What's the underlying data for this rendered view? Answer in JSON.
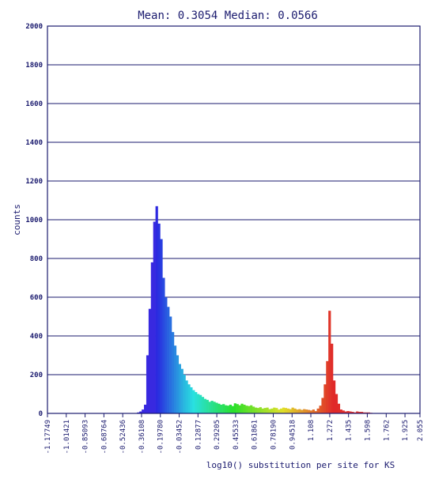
{
  "chart_data": {
    "type": "bar",
    "title": "Mean: 0.3054 Median: 0.0566",
    "xlabel": "log10() substitution per site for KS",
    "ylabel": "counts",
    "ylim": [
      0,
      2000
    ],
    "xlim": [
      -1.17749,
      2.055
    ],
    "yticks": [
      0,
      200,
      400,
      600,
      800,
      1000,
      1200,
      1400,
      1600,
      1800,
      2000
    ],
    "xticks": [
      "-1.17749",
      "-1.01421",
      "-0.85093",
      "-0.68764",
      "-0.52436",
      "-0.36108",
      "-0.19780",
      "-0.03452",
      "0.12877",
      "0.29205",
      "0.45533",
      "0.61861",
      "0.78190",
      "0.94518",
      "1.108",
      "1.272",
      "1.435",
      "1.598",
      "1.762",
      "1.925",
      "2.055"
    ],
    "grid": true,
    "bins_x": [
      -0.41,
      -0.39,
      -0.37,
      -0.35,
      -0.33,
      -0.31,
      -0.29,
      -0.27,
      -0.25,
      -0.23,
      -0.21,
      -0.19,
      -0.17,
      -0.15,
      -0.13,
      -0.11,
      -0.09,
      -0.07,
      -0.05,
      -0.03,
      -0.01,
      0.01,
      0.03,
      0.05,
      0.07,
      0.09,
      0.11,
      0.13,
      0.15,
      0.17,
      0.19,
      0.21,
      0.23,
      0.25,
      0.27,
      0.29,
      0.31,
      0.33,
      0.35,
      0.37,
      0.39,
      0.41,
      0.43,
      0.45,
      0.47,
      0.49,
      0.51,
      0.53,
      0.55,
      0.57,
      0.59,
      0.61,
      0.63,
      0.65,
      0.67,
      0.69,
      0.71,
      0.73,
      0.75,
      0.77,
      0.79,
      0.81,
      0.83,
      0.85,
      0.87,
      0.89,
      0.91,
      0.93,
      0.95,
      0.97,
      0.99,
      1.01,
      1.03,
      1.05,
      1.07,
      1.09,
      1.11,
      1.13,
      1.15,
      1.17,
      1.19,
      1.21,
      1.23,
      1.25,
      1.27,
      1.29,
      1.31,
      1.33,
      1.35,
      1.37,
      1.39,
      1.41,
      1.43,
      1.45,
      1.47,
      1.49,
      1.51,
      1.53,
      1.55,
      1.57,
      1.59,
      1.61,
      1.63,
      1.65,
      1.67,
      1.69,
      1.71,
      1.73,
      1.75,
      1.77,
      1.79,
      1.81,
      1.83,
      1.85,
      1.87,
      1.89,
      1.91,
      1.93,
      1.95,
      1.97,
      1.99,
      2.01,
      2.03,
      2.05
    ],
    "bins_count": [
      2,
      5,
      10,
      20,
      45,
      300,
      540,
      780,
      990,
      1070,
      980,
      900,
      700,
      600,
      550,
      500,
      420,
      350,
      300,
      255,
      230,
      200,
      170,
      150,
      135,
      120,
      110,
      100,
      95,
      85,
      75,
      70,
      60,
      65,
      60,
      55,
      50,
      45,
      48,
      42,
      40,
      45,
      38,
      52,
      48,
      42,
      50,
      45,
      40,
      38,
      42,
      35,
      30,
      28,
      32,
      25,
      28,
      30,
      22,
      25,
      30,
      28,
      20,
      25,
      30,
      28,
      25,
      22,
      30,
      25,
      20,
      22,
      18,
      22,
      20,
      18,
      15,
      20,
      12,
      25,
      40,
      80,
      150,
      270,
      530,
      360,
      170,
      100,
      50,
      20,
      15,
      10,
      12,
      10,
      8,
      5,
      10,
      8,
      8,
      5,
      5,
      5,
      3,
      2,
      2,
      2,
      2,
      2,
      2,
      1,
      1,
      1,
      1,
      0,
      0,
      0,
      0,
      0,
      0,
      0,
      0,
      0,
      0,
      0
    ]
  }
}
